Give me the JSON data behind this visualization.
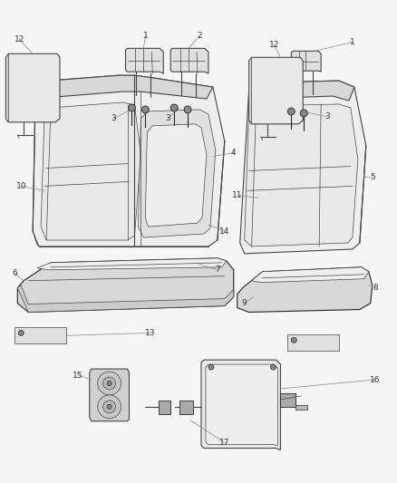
{
  "bg_color": "#f5f5f5",
  "line_color": "#444444",
  "dark_line": "#222222",
  "gray_fill": "#d8d8d8",
  "light_fill": "#eeeeee",
  "label_color": "#333333",
  "leader_color": "#888888",
  "figsize": [
    4.38,
    5.33
  ],
  "dpi": 100,
  "xlim": [
    0,
    438
  ],
  "ylim": [
    0,
    533
  ]
}
